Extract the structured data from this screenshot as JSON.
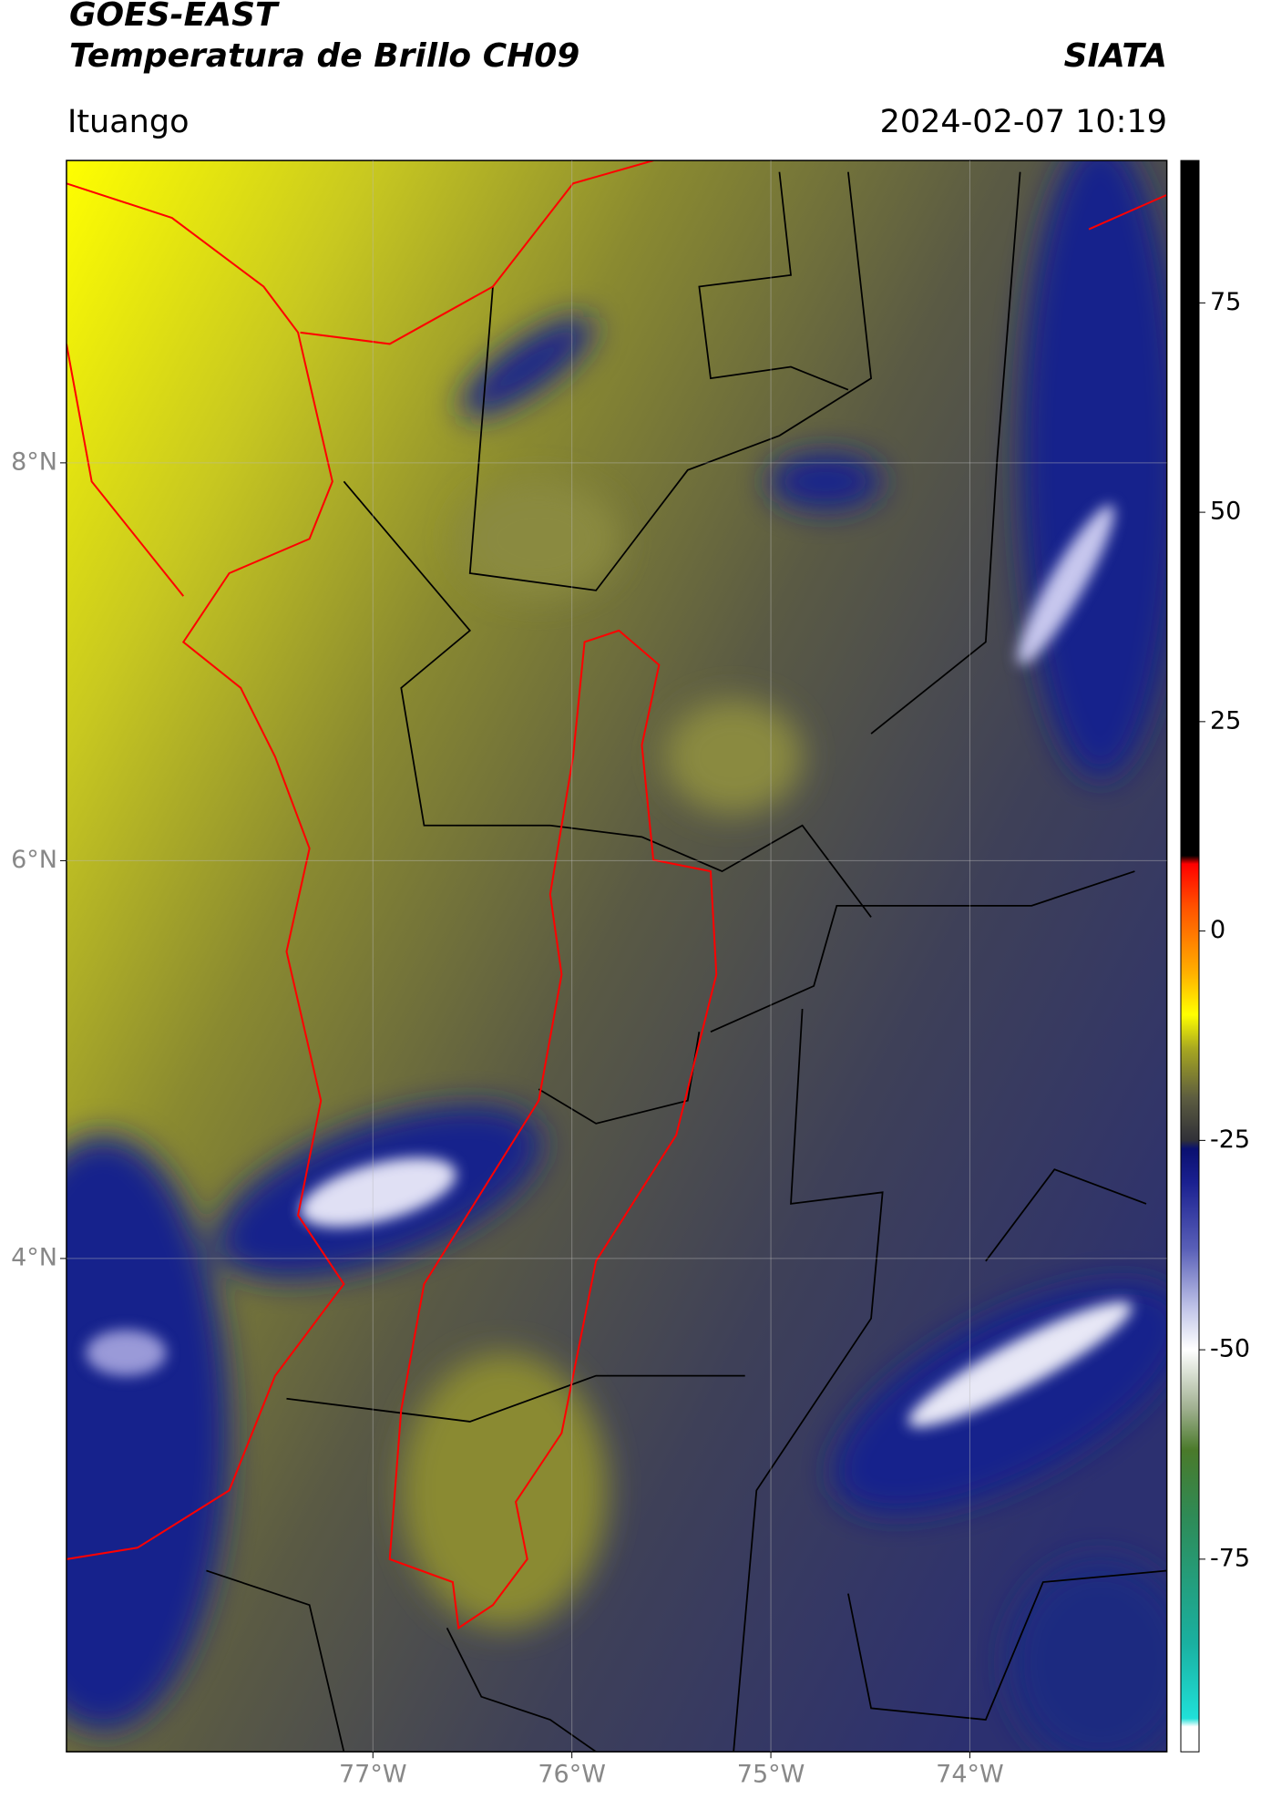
{
  "header": {
    "title": "GOES-EAST",
    "subtitle": "Temperatura de Brillo CH09",
    "brand": "SIATA",
    "location": "Ituango",
    "datetime": "2024-02-07 10:19"
  },
  "map": {
    "lonlim": [
      -78.54,
      -73.01
    ],
    "latlim": [
      1.52,
      9.52
    ],
    "lonticks": [
      {
        "value": -77,
        "label": "77°W"
      },
      {
        "value": -76,
        "label": "76°W"
      },
      {
        "value": -75,
        "label": "75°W"
      },
      {
        "value": -74,
        "label": "74°W"
      }
    ],
    "latticks": [
      {
        "value": 8,
        "label": "8°N"
      },
      {
        "value": 6,
        "label": "6°N"
      },
      {
        "value": 4,
        "label": "4°N"
      }
    ]
  },
  "colorbar": {
    "lim": [
      -98,
      92
    ],
    "ticks": [
      75,
      50,
      25,
      0,
      -25,
      -50,
      -75
    ],
    "stops": [
      {
        "value": -98,
        "color": "#ffffff"
      },
      {
        "value": -95,
        "color": "#ffffff"
      },
      {
        "value": -94,
        "color": "#20e0d8"
      },
      {
        "value": -85,
        "color": "#1ab0a0"
      },
      {
        "value": -70,
        "color": "#2e8b57"
      },
      {
        "value": -62,
        "color": "#4a7a2a"
      },
      {
        "value": -57,
        "color": "#a0b090"
      },
      {
        "value": -50,
        "color": "#ffffff"
      },
      {
        "value": -45,
        "color": "#c0c4e8"
      },
      {
        "value": -38,
        "color": "#5a60b8"
      },
      {
        "value": -30,
        "color": "#1a2090"
      },
      {
        "value": -26,
        "color": "#0a1070"
      },
      {
        "value": -25,
        "color": "#303038"
      },
      {
        "value": -20,
        "color": "#5c5c40"
      },
      {
        "value": -14,
        "color": "#a8a820"
      },
      {
        "value": -10,
        "color": "#ffff00"
      },
      {
        "value": -5,
        "color": "#ffb000"
      },
      {
        "value": 3,
        "color": "#ff5000"
      },
      {
        "value": 8,
        "color": "#ff0000"
      },
      {
        "value": 9,
        "color": "#000000"
      },
      {
        "value": 92,
        "color": "#000000"
      }
    ]
  }
}
